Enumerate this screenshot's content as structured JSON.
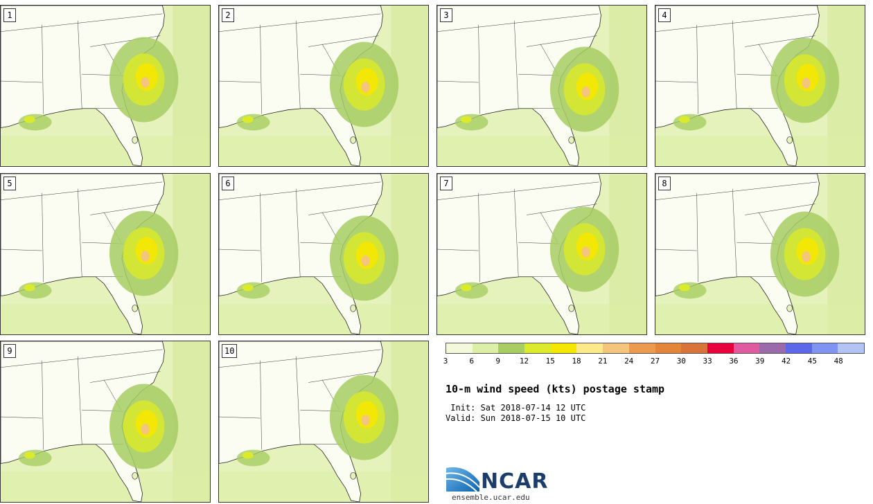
{
  "panels": [
    {
      "label": "1"
    },
    {
      "label": "2"
    },
    {
      "label": "3"
    },
    {
      "label": "4"
    },
    {
      "label": "5"
    },
    {
      "label": "6"
    },
    {
      "label": "7"
    },
    {
      "label": "8"
    },
    {
      "label": "9"
    },
    {
      "label": "10"
    }
  ],
  "colorbar": {
    "colors": [
      "#f4f9dc",
      "#dcefa6",
      "#a7cd63",
      "#dbea2a",
      "#f5e700",
      "#fbe98a",
      "#f3c57d",
      "#ec9a4e",
      "#e4863a",
      "#d8733a",
      "#e8003c",
      "#e05aa0",
      "#9b6aaa",
      "#5b68e8",
      "#7f93f0",
      "#b2c4f4"
    ],
    "ticks": [
      "3",
      "6",
      "9",
      "12",
      "15",
      "18",
      "21",
      "24",
      "27",
      "30",
      "33",
      "36",
      "39",
      "42",
      "45",
      "48"
    ]
  },
  "title": "10-m wind speed (kts) postage stamp",
  "init": " Init: Sat 2018-07-14 12 UTC",
  "valid": "Valid: Sun 2018-07-15 10 UTC",
  "logo": {
    "text": "NCAR",
    "url": "ensemble.ucar.edu"
  }
}
